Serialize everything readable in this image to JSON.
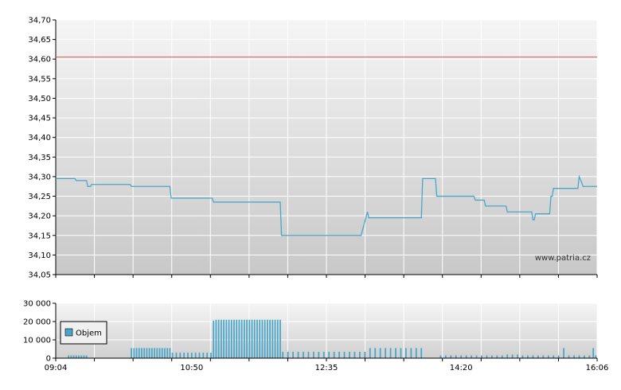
{
  "chart_data": [
    {
      "type": "line",
      "name": "price",
      "x_ticks": [
        "09:04",
        "10:50",
        "12:35",
        "14:20",
        "16:06"
      ],
      "x_range_minutes": [
        544,
        966
      ],
      "ylim": [
        34.05,
        34.7
      ],
      "y_ticks": [
        "34,05",
        "34,10",
        "34,15",
        "34,20",
        "34,25",
        "34,30",
        "34,35",
        "34,40",
        "34,45",
        "34,50",
        "34,55",
        "34,60",
        "34,65",
        "34,70"
      ],
      "reference_line": {
        "value": 34.605,
        "color": "#d9534f"
      },
      "line_color": "#4aa6c9",
      "grid": true,
      "series": [
        {
          "x": [
            "09:04",
            "09:19",
            "09:20",
            "09:28",
            "09:29",
            "09:31",
            "09:32",
            "10:02",
            "10:03",
            "10:33",
            "10:34",
            "11:06",
            "11:07",
            "11:59",
            "12:00",
            "13:01",
            "13:02",
            "13:07",
            "13:08",
            "13:49",
            "13:50",
            "14:00",
            "14:01",
            "14:30",
            "14:31",
            "14:38",
            "14:39",
            "14:55",
            "14:56",
            "15:15",
            "15:16",
            "15:17",
            "15:18",
            "15:29",
            "15:30",
            "15:31",
            "15:32",
            "15:51",
            "15:52",
            "15:54",
            "15:55",
            "16:06"
          ],
          "y": [
            34.295,
            34.295,
            34.29,
            34.29,
            34.275,
            34.275,
            34.28,
            34.28,
            34.275,
            34.275,
            34.245,
            34.245,
            34.235,
            34.235,
            34.15,
            34.15,
            34.15,
            34.21,
            34.195,
            34.195,
            34.295,
            34.295,
            34.25,
            34.25,
            34.24,
            34.24,
            34.225,
            34.225,
            34.21,
            34.21,
            34.19,
            34.19,
            34.205,
            34.205,
            34.25,
            34.25,
            34.27,
            34.27,
            34.3,
            34.285,
            34.275,
            34.275
          ]
        }
      ]
    },
    {
      "type": "bar",
      "name": "volume",
      "ylim": [
        0,
        30000
      ],
      "y_ticks": [
        "0",
        "10 000",
        "20 000",
        "30 000"
      ],
      "legend": {
        "label": "Objem",
        "color": "#4aa6c9",
        "placement": "top-left"
      },
      "bar_color": "#4aa6c9",
      "series": [
        {
          "x": [
            "09:14",
            "09:16",
            "09:18",
            "09:20",
            "09:22",
            "09:24",
            "09:26",
            "09:28",
            "10:03",
            "10:05",
            "10:07",
            "10:09",
            "10:11",
            "10:13",
            "10:15",
            "10:17",
            "10:19",
            "10:21",
            "10:23",
            "10:25",
            "10:27",
            "10:29",
            "10:31",
            "10:33",
            "10:35",
            "10:38",
            "10:41",
            "10:44",
            "10:47",
            "10:50",
            "10:53",
            "10:56",
            "10:59",
            "11:02",
            "11:05",
            "11:07",
            "11:09",
            "11:11",
            "11:13",
            "11:15",
            "11:17",
            "11:19",
            "11:21",
            "11:23",
            "11:25",
            "11:27",
            "11:29",
            "11:31",
            "11:33",
            "11:35",
            "11:37",
            "11:39",
            "11:41",
            "11:43",
            "11:45",
            "11:47",
            "11:49",
            "11:51",
            "11:53",
            "11:55",
            "11:57",
            "11:59",
            "12:01",
            "12:05",
            "12:09",
            "12:13",
            "12:17",
            "12:21",
            "12:25",
            "12:29",
            "12:33",
            "12:37",
            "12:41",
            "12:45",
            "12:49",
            "12:53",
            "12:57",
            "13:01",
            "13:05",
            "13:09",
            "13:13",
            "13:17",
            "13:21",
            "13:25",
            "13:29",
            "13:33",
            "13:37",
            "13:41",
            "13:45",
            "13:49",
            "14:04",
            "14:08",
            "14:12",
            "14:16",
            "14:20",
            "14:24",
            "14:28",
            "14:32",
            "14:36",
            "14:40",
            "14:44",
            "14:48",
            "14:52",
            "14:56",
            "15:00",
            "15:04",
            "15:08",
            "15:12",
            "15:16",
            "15:20",
            "15:24",
            "15:28",
            "15:32",
            "15:36",
            "15:40",
            "15:44",
            "15:48",
            "15:52",
            "15:56",
            "16:00",
            "16:03",
            "16:05"
          ],
          "y": [
            1500,
            1500,
            1500,
            1500,
            1500,
            1500,
            1500,
            1500,
            5500,
            5500,
            5500,
            5500,
            5500,
            5500,
            5500,
            5500,
            5500,
            5500,
            5500,
            5500,
            5500,
            5500,
            5500,
            5500,
            3000,
            3000,
            3000,
            3000,
            3000,
            3000,
            3000,
            3000,
            3000,
            3000,
            3000,
            20500,
            21000,
            21000,
            21000,
            21000,
            21000,
            21000,
            21000,
            21000,
            21000,
            21000,
            21000,
            21000,
            21000,
            21000,
            21000,
            21000,
            21000,
            21000,
            21000,
            21000,
            21000,
            21000,
            21000,
            21000,
            21000,
            21000,
            3500,
            3500,
            3500,
            3500,
            3500,
            3500,
            3500,
            3500,
            3500,
            3500,
            3500,
            3500,
            3500,
            3500,
            3500,
            3500,
            3500,
            5500,
            5500,
            5500,
            5500,
            5500,
            5500,
            5500,
            5500,
            5500,
            5500,
            5500,
            1500,
            1500,
            1500,
            1500,
            1500,
            1500,
            1500,
            1500,
            1500,
            1500,
            1500,
            1500,
            1500,
            2000,
            2000,
            2000,
            1500,
            1500,
            1500,
            1500,
            1500,
            1500,
            1500,
            1500,
            5500,
            1500,
            1500,
            1500,
            1500,
            1500,
            5500,
            1500
          ]
        }
      ]
    }
  ],
  "watermark": "www.patria.cz"
}
